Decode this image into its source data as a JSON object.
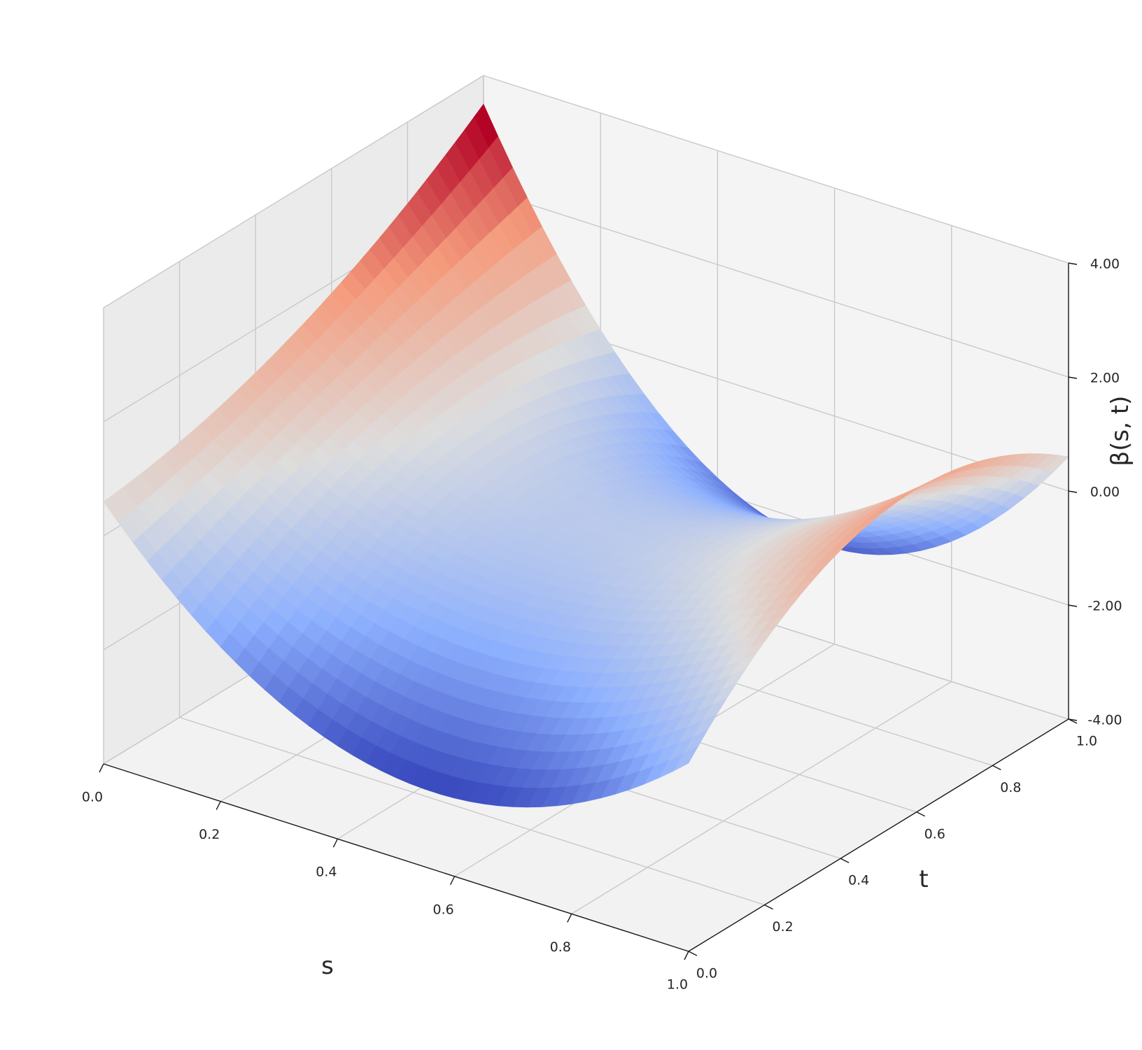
{
  "chart_data": {
    "type": "surface",
    "colormap": "coolwarm",
    "xlabel": "s",
    "ylabel": "t",
    "zlabel": "β(s, t)",
    "xlim": [
      0.0,
      1.0
    ],
    "ylim": [
      0.0,
      1.0
    ],
    "zlim": [
      -4.0,
      4.0
    ],
    "x_ticks": [
      "0.0",
      "0.2",
      "0.4",
      "0.6",
      "0.8",
      "1.0"
    ],
    "y_ticks": [
      "0.0",
      "0.2",
      "0.4",
      "0.6",
      "0.8",
      "1.0"
    ],
    "z_ticks": [
      "-4.00",
      "-2.00",
      "0.00",
      "2.00",
      "4.00"
    ],
    "grid": true,
    "surface_samples": [
      {
        "s": 0.0,
        "t": 0.0,
        "z": 0.6
      },
      {
        "s": 0.5,
        "t": 0.0,
        "z": -2.6
      },
      {
        "s": 1.0,
        "t": 0.0,
        "z": -0.7
      },
      {
        "s": 0.0,
        "t": 0.5,
        "z": 1.5
      },
      {
        "s": 0.5,
        "t": 0.5,
        "z": -0.3
      },
      {
        "s": 1.0,
        "t": 0.5,
        "z": 1.6
      },
      {
        "s": 0.0,
        "t": 1.0,
        "z": 3.5
      },
      {
        "s": 0.5,
        "t": 1.0,
        "z": -2.2
      },
      {
        "s": 1.0,
        "t": 1.0,
        "z": 0.6
      }
    ]
  }
}
